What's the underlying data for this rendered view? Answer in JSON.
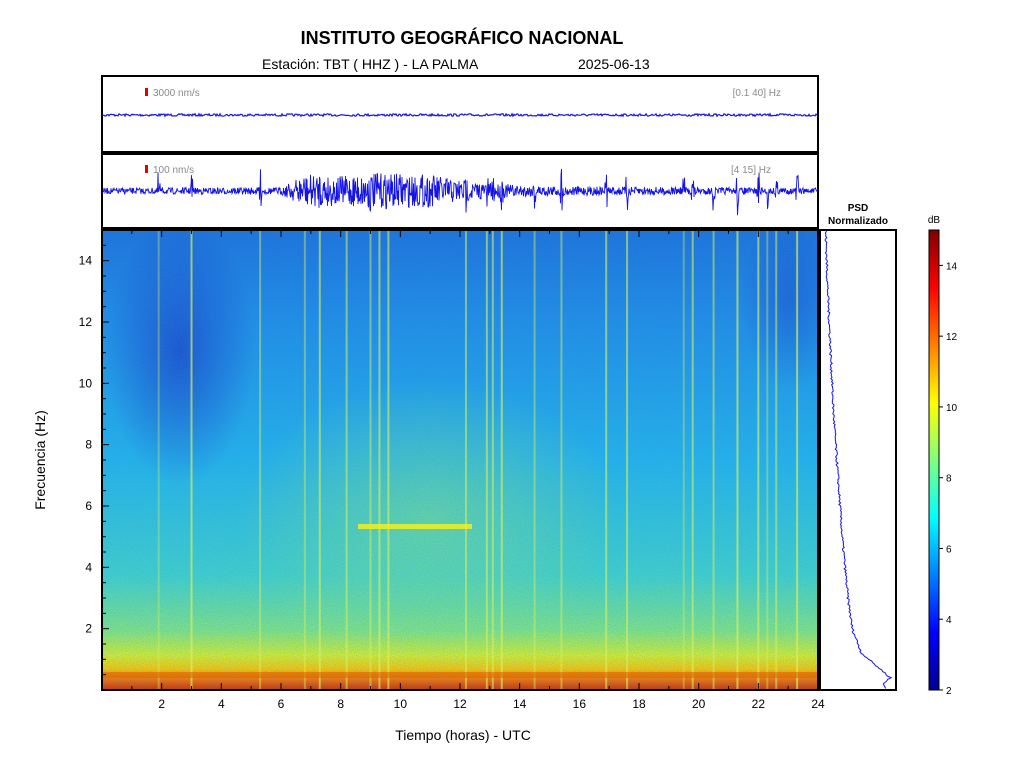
{
  "header": {
    "title": "INSTITUTO GEOGRÁFICO NACIONAL",
    "station": "Estación:  TBT ( HHZ ) - LA PALMA",
    "date": "2025-06-13"
  },
  "chart_data": [
    {
      "type": "line",
      "panel": "seismogram-broadband",
      "scale_label": "3000 nm/s",
      "filter_label": "[0.1 40] Hz",
      "x_range": [
        0,
        24
      ],
      "description_level": "flat"
    },
    {
      "type": "line",
      "panel": "seismogram-filtered",
      "scale_label": "100 nm/s",
      "filter_label": "[4 15] Hz",
      "x_range": [
        0,
        24
      ],
      "events_hours": [
        1.9,
        3.0,
        5.3,
        6.8,
        7.3,
        8.2,
        9.0,
        9.3,
        9.6,
        12.2,
        12.9,
        13.1,
        13.4,
        14.5,
        15.4,
        16.9,
        17.6,
        19.5,
        19.8,
        20.5,
        21.3,
        22.0,
        22.3,
        22.6,
        23.3
      ],
      "noise_envelope": [
        {
          "x": 0,
          "amp": 0.1
        },
        {
          "x": 6,
          "amp": 0.12
        },
        {
          "x": 6.8,
          "amp": 0.55
        },
        {
          "x": 8,
          "amp": 0.5
        },
        {
          "x": 9,
          "amp": 0.6
        },
        {
          "x": 11,
          "amp": 0.55
        },
        {
          "x": 12.5,
          "amp": 0.3
        },
        {
          "x": 14,
          "amp": 0.2
        },
        {
          "x": 16,
          "amp": 0.15
        },
        {
          "x": 24,
          "amp": 0.1
        }
      ]
    },
    {
      "type": "heatmap",
      "panel": "spectrogram",
      "xlabel": "Tiempo (horas) - UTC",
      "ylabel": "Frecuencia  (Hz)",
      "xlim": [
        0,
        24
      ],
      "ylim": [
        0,
        15
      ],
      "x_ticks": [
        "2",
        "4",
        "6",
        "8",
        "10",
        "12",
        "14",
        "16",
        "18",
        "20",
        "22",
        "24"
      ],
      "y_ticks": [
        "2",
        "4",
        "6",
        "8",
        "10",
        "12",
        "14"
      ],
      "colorbar": {
        "label": "dB",
        "range": [
          2,
          15
        ],
        "ticks": [
          "2",
          "4",
          "6",
          "8",
          "10",
          "12",
          "14"
        ],
        "colormap": "jet"
      }
    },
    {
      "type": "line",
      "panel": "psd",
      "title": "PSD\nNormalizado",
      "title_line1": "PSD",
      "title_line2": "Normalizado",
      "profile": [
        {
          "f": 15,
          "v": 0.05
        },
        {
          "f": 13,
          "v": 0.08
        },
        {
          "f": 11,
          "v": 0.12
        },
        {
          "f": 9,
          "v": 0.16
        },
        {
          "f": 7,
          "v": 0.22
        },
        {
          "f": 5,
          "v": 0.28
        },
        {
          "f": 3,
          "v": 0.36
        },
        {
          "f": 2,
          "v": 0.42
        },
        {
          "f": 1.2,
          "v": 0.55
        },
        {
          "f": 0.7,
          "v": 0.8
        },
        {
          "f": 0.4,
          "v": 0.95
        },
        {
          "f": 0.2,
          "v": 0.85
        },
        {
          "f": 0,
          "v": 0.9
        }
      ]
    }
  ],
  "colors": {
    "trace": "#1414e6",
    "scale_bar": "#e00000",
    "label_gray": "#8a8a8a"
  }
}
